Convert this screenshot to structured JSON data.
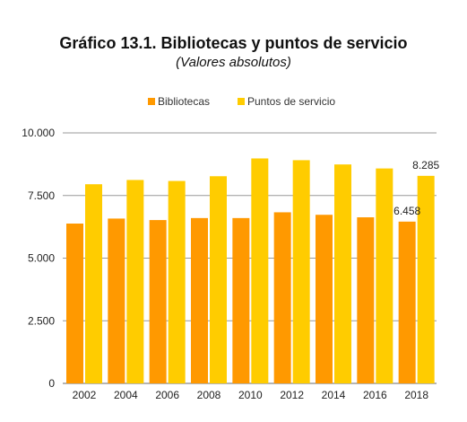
{
  "chart_data": {
    "type": "bar",
    "title": "Gráfico 13.1. Bibliotecas y puntos de servicio",
    "subtitle": "(Valores absolutos)",
    "categories": [
      "2002",
      "2004",
      "2006",
      "2008",
      "2010",
      "2012",
      "2014",
      "2016",
      "2018"
    ],
    "series": [
      {
        "name": "Bibliotecas",
        "color": "#ff9900",
        "values": [
          6380,
          6580,
          6520,
          6600,
          6600,
          6830,
          6730,
          6630,
          6458
        ]
      },
      {
        "name": "Puntos de servicio",
        "color": "#ffcc00",
        "values": [
          7950,
          8120,
          8080,
          8270,
          8980,
          8910,
          8740,
          8580,
          8285
        ]
      }
    ],
    "ylim": [
      0,
      10000
    ],
    "yticks": [
      "0",
      "2.500",
      "5.000",
      "7.500",
      "10.000"
    ],
    "ytick_values": [
      0,
      2500,
      5000,
      7500,
      10000
    ],
    "data_labels": [
      {
        "series": 0,
        "category": "2018",
        "text": "6.458"
      },
      {
        "series": 1,
        "category": "2018",
        "text": "8.285"
      }
    ],
    "legend": "top",
    "grid": true
  }
}
